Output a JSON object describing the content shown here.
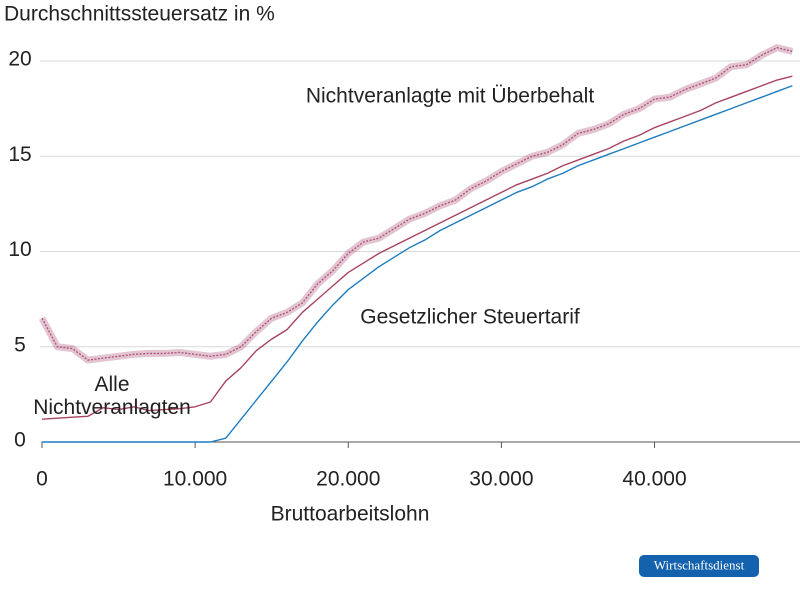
{
  "chart_data": {
    "type": "line",
    "title": "Durchschnittssteuersatz in %",
    "x_label": "Bruttoarbeitslohn",
    "source": "Wirtschaftsdienst",
    "x": [
      0,
      1000,
      2000,
      3000,
      4000,
      5000,
      6000,
      7000,
      8000,
      9000,
      10000,
      11000,
      12000,
      13000,
      14000,
      15000,
      16000,
      17000,
      18000,
      19000,
      20000,
      21000,
      22000,
      23000,
      24000,
      25000,
      26000,
      27000,
      28000,
      29000,
      30000,
      31000,
      32000,
      33000,
      34000,
      35000,
      36000,
      37000,
      38000,
      39000,
      40000,
      41000,
      42000,
      43000,
      44000,
      45000,
      46000,
      47000,
      48000,
      49000
    ],
    "series": [
      {
        "name": "Nichtveranlagte mit Überbehalt",
        "color": "#b0567c",
        "values": [
          6.5,
          5.0,
          4.9,
          4.3,
          4.4,
          4.5,
          4.6,
          4.65,
          4.65,
          4.7,
          4.6,
          4.5,
          4.6,
          5.0,
          5.8,
          6.5,
          6.8,
          7.3,
          8.3,
          9.0,
          9.9,
          10.5,
          10.7,
          11.2,
          11.7,
          12.0,
          12.4,
          12.7,
          13.3,
          13.7,
          14.2,
          14.6,
          15.0,
          15.2,
          15.6,
          16.2,
          16.4,
          16.7,
          17.2,
          17.5,
          18.0,
          18.1,
          18.5,
          18.8,
          19.1,
          19.7,
          19.8,
          20.3,
          20.7,
          20.5
        ]
      },
      {
        "name": "Alle Nichtveranlagten",
        "color": "#a8435f",
        "values": [
          1.2,
          1.25,
          1.3,
          1.35,
          1.8,
          1.7,
          1.85,
          1.65,
          1.7,
          1.75,
          1.85,
          2.1,
          3.2,
          3.9,
          4.8,
          5.4,
          5.9,
          6.8,
          7.5,
          8.2,
          8.9,
          9.4,
          9.9,
          10.3,
          10.7,
          11.1,
          11.5,
          11.9,
          12.3,
          12.7,
          13.1,
          13.5,
          13.8,
          14.1,
          14.5,
          14.8,
          15.1,
          15.4,
          15.8,
          16.1,
          16.5,
          16.8,
          17.1,
          17.4,
          17.8,
          18.1,
          18.4,
          18.7,
          19.0,
          19.2
        ]
      },
      {
        "name": "Gesetzlicher Steuertarif",
        "color": "#1f7cc0",
        "values": [
          0,
          0,
          0,
          0,
          0,
          0,
          0,
          0,
          0,
          0,
          0,
          0,
          0.2,
          1.2,
          2.2,
          3.2,
          4.2,
          5.3,
          6.3,
          7.2,
          8.0,
          8.6,
          9.2,
          9.7,
          10.2,
          10.6,
          11.1,
          11.5,
          11.9,
          12.3,
          12.7,
          13.1,
          13.4,
          13.8,
          14.1,
          14.5,
          14.8,
          15.1,
          15.4,
          15.7,
          16.0,
          16.3,
          16.6,
          16.9,
          17.2,
          17.5,
          17.8,
          18.1,
          18.4,
          18.7
        ]
      }
    ],
    "xlim": [
      0,
      49500
    ],
    "xticks": [
      0,
      {
        "value": 10000,
        "label": "10.000"
      },
      {
        "value": 20000,
        "label": "20.000"
      },
      {
        "value": 30000,
        "label": "30.000"
      },
      {
        "value": 40000,
        "label": "40.000"
      }
    ],
    "ylim": [
      0,
      21.5
    ],
    "yticks": [
      0,
      5,
      10,
      15,
      20
    ],
    "grid": true
  }
}
